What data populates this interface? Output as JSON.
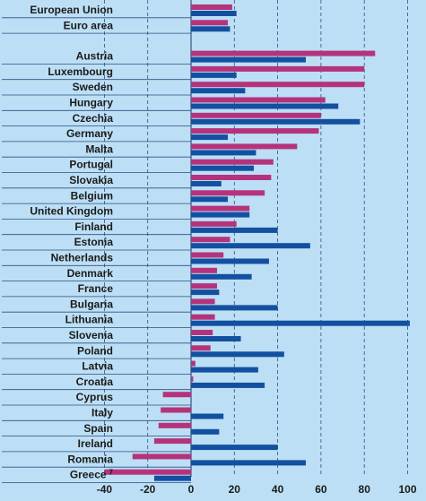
{
  "chart_data": {
    "type": "bar",
    "orientation": "horizontal",
    "xlim": [
      -40,
      100
    ],
    "x_ticks": [
      "-40",
      "-20",
      "0",
      "20",
      "40",
      "60",
      "80",
      "100"
    ],
    "grid": "vertical-dashed",
    "colors": {
      "series1": "#b5337a",
      "series2": "#1450a0",
      "background": "#bcdff5"
    },
    "rows": [
      {
        "label": "European Union",
        "a": 19,
        "b": 21
      },
      {
        "label": "Euro area",
        "a": 17,
        "b": 18
      },
      {
        "gap": true
      },
      {
        "label": "Austria",
        "a": 85,
        "b": 53
      },
      {
        "label": "Luxembourg",
        "a": 80,
        "b": 21
      },
      {
        "label": "Sweden",
        "a": 80,
        "b": 25
      },
      {
        "label": "Hungary",
        "a": 62,
        "b": 68
      },
      {
        "label": "Czechia",
        "a": 60,
        "b": 78
      },
      {
        "label": "Germany",
        "a": 59,
        "b": 17
      },
      {
        "label": "Malta",
        "a": 49,
        "b": 30
      },
      {
        "label": "Portugal",
        "a": 38,
        "b": 29
      },
      {
        "label": "Slovakia",
        "a": 37,
        "b": 14
      },
      {
        "label": "Belgium",
        "a": 34,
        "b": 17
      },
      {
        "label": "United Kingdom",
        "a": 27,
        "b": 27
      },
      {
        "label": "Finland",
        "a": 21,
        "b": 40
      },
      {
        "label": "Estonia",
        "a": 18,
        "b": 55
      },
      {
        "label": "Netherlands",
        "a": 15,
        "b": 36
      },
      {
        "label": "Denmark",
        "a": 12,
        "b": 28
      },
      {
        "label": "France",
        "a": 12,
        "b": 13
      },
      {
        "label": "Bulgaria",
        "a": 11,
        "b": 40
      },
      {
        "label": "Lithuania",
        "a": 11,
        "b": 101
      },
      {
        "label": "Slovenia",
        "a": 10,
        "b": 23
      },
      {
        "label": "Poland",
        "a": 9,
        "b": 43
      },
      {
        "label": "Latvia",
        "a": 2,
        "b": 31
      },
      {
        "label": "Croatia",
        "a": 1,
        "b": 34
      },
      {
        "label": "Cyprus",
        "a": -13,
        "b": 0
      },
      {
        "label": "Italy",
        "a": -14,
        "b": 15
      },
      {
        "label": "Spain",
        "a": -15,
        "b": 13
      },
      {
        "label": "Ireland",
        "a": -17,
        "b": 40
      },
      {
        "label": "Romania",
        "a": -27,
        "b": 53
      },
      {
        "label": "Greece",
        "sup": "7",
        "a": -40,
        "b": -17
      }
    ]
  }
}
